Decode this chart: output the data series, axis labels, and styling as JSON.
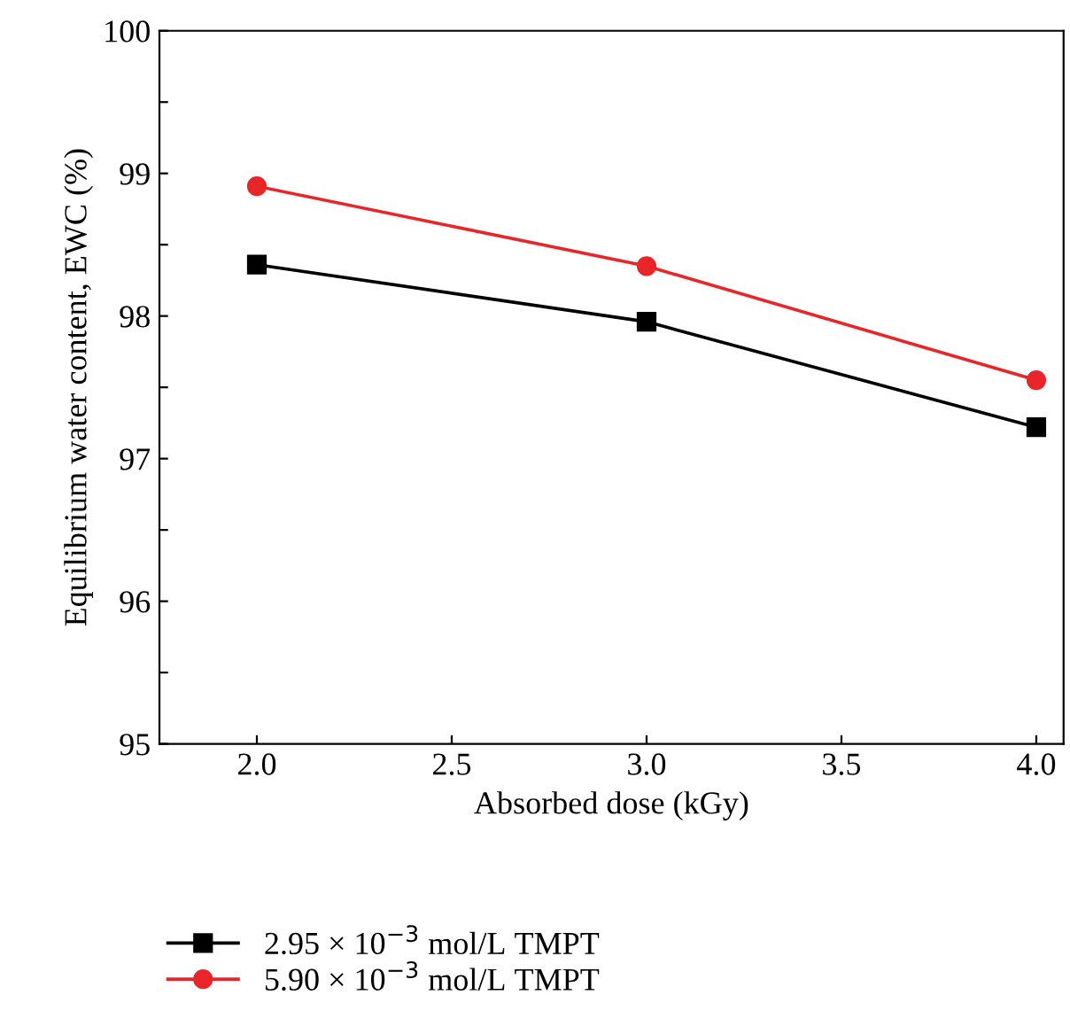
{
  "chart_data": {
    "type": "line",
    "xlabel": "Absorbed dose (kGy)",
    "ylabel": "Equilibrium water content, EWC (%)",
    "x": [
      2.0,
      3.0,
      4.0
    ],
    "series": [
      {
        "name": "2.95 × 10$^{−3}$ mol/L TMPT",
        "color": "#000000",
        "marker": "square",
        "values": [
          98.36,
          97.96,
          97.22
        ]
      },
      {
        "name": "5.90 × 10$^{−3}$ mol/L TMPT",
        "color": "#e8262a",
        "marker": "circle",
        "values": [
          98.91,
          98.35,
          97.55
        ]
      }
    ],
    "xlim": [
      1.75,
      4.07
    ],
    "xticks": [
      {
        "value": 2.0,
        "label": "2.0"
      },
      {
        "value": 2.5,
        "label": "2.5"
      },
      {
        "value": 3.0,
        "label": "3.0"
      },
      {
        "value": 3.5,
        "label": "3.5"
      },
      {
        "value": 4.0,
        "label": "4.0"
      }
    ],
    "ylim": [
      95,
      100
    ],
    "yticks": [
      95,
      {
        "value": 95.5,
        "label": null
      },
      96,
      {
        "value": 96.5,
        "label": null
      },
      97,
      {
        "value": 97.5,
        "label": null
      },
      98,
      {
        "value": 98.5,
        "label": null
      },
      99,
      {
        "value": 99.5,
        "label": null
      },
      100
    ],
    "grid": false,
    "legend": "bottom left",
    "line_style": "solid"
  }
}
